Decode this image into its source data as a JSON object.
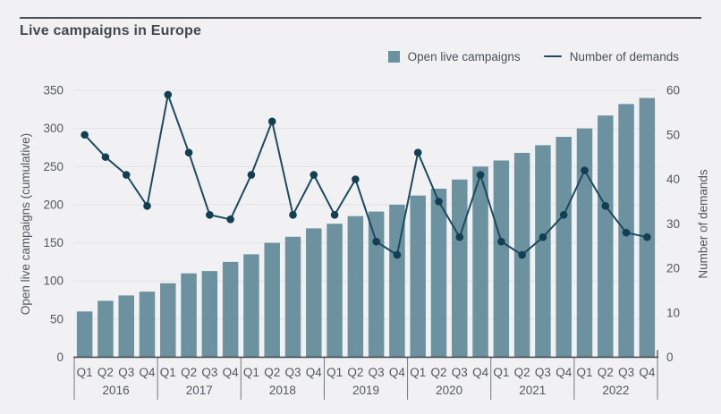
{
  "page": {
    "title": "Live campaigns in Europe"
  },
  "chart_data": {
    "type": "combo",
    "title": "Live campaigns in Europe",
    "x": {
      "years": [
        "2016",
        "2017",
        "2018",
        "2019",
        "2020",
        "2021",
        "2022"
      ],
      "quarters_per_year": [
        "Q1",
        "Q2",
        "Q3",
        "Q4"
      ]
    },
    "series": [
      {
        "name": "Open live campaigns",
        "type": "bar",
        "yaxis": "left",
        "values": [
          60,
          74,
          81,
          86,
          97,
          110,
          113,
          125,
          135,
          150,
          158,
          169,
          175,
          185,
          191,
          200,
          212,
          221,
          233,
          250,
          258,
          268,
          278,
          289,
          300,
          317,
          332,
          340
        ]
      },
      {
        "name": "Number of demands",
        "type": "line",
        "yaxis": "right",
        "values": [
          50,
          45,
          41,
          34,
          59,
          46,
          32,
          31,
          41,
          53,
          32,
          41,
          32,
          40,
          26,
          23,
          46,
          35,
          27,
          41,
          26,
          23,
          27,
          32,
          42,
          34,
          28,
          27
        ]
      }
    ],
    "left_axis": {
      "title": "Open live campaigns (cumulative)",
      "min": 0,
      "max": 350,
      "tick_interval": 50
    },
    "right_axis": {
      "title": "Number of demands",
      "min": 0,
      "max": 60,
      "tick_interval": 10
    },
    "grid": true,
    "legend_position": "top-right",
    "colors": {
      "background": "#f1f1f3",
      "bar": "#6c929f",
      "line": "#1c4a5e",
      "marker": "#133f53",
      "grid": "#e2e2e6",
      "text": "#54585e",
      "title": "#42484e",
      "rule": "#4b5157",
      "separator": "#73777b",
      "axis_line": "#3d4247"
    }
  }
}
